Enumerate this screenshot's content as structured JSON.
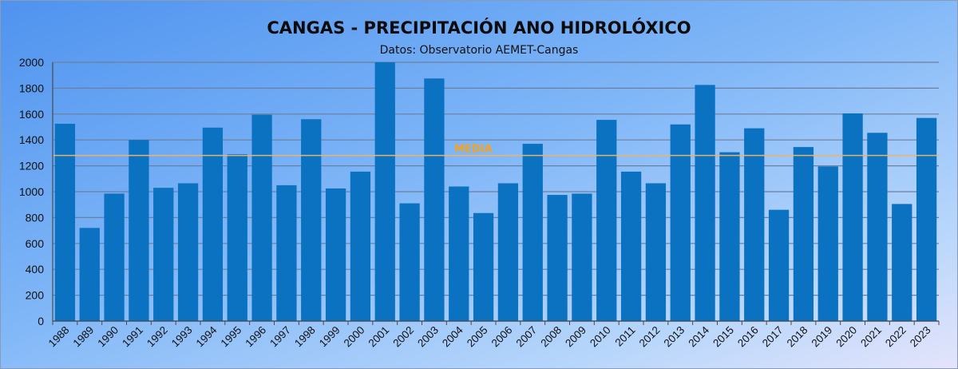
{
  "chart_data": {
    "type": "bar",
    "title": "CANGAS - PRECIPITACIÓN ANO HIDROLÓXICO",
    "subtitle": "Datos: Observatorio AEMET-Cangas",
    "xlabel": "",
    "ylabel": "",
    "ylim": [
      0,
      2000
    ],
    "yticks": [
      0,
      200,
      400,
      600,
      800,
      1000,
      1200,
      1400,
      1600,
      1800,
      2000
    ],
    "grid": true,
    "categories": [
      "1988",
      "1989",
      "1990",
      "1991",
      "1992",
      "1993",
      "1994",
      "1995",
      "1996",
      "1997",
      "1998",
      "1999",
      "2000",
      "2001",
      "2002",
      "2003",
      "2004",
      "2005",
      "2006",
      "2007",
      "2008",
      "2009",
      "2010",
      "2011",
      "2012",
      "2013",
      "2014",
      "2015",
      "2016",
      "2017",
      "2018",
      "2019",
      "2020",
      "2021",
      "2022",
      "2023"
    ],
    "values": [
      1525,
      720,
      985,
      1400,
      1030,
      1065,
      1495,
      1290,
      1595,
      1050,
      1560,
      1025,
      1155,
      2010,
      910,
      1875,
      1040,
      835,
      1065,
      1370,
      975,
      985,
      1555,
      1155,
      1065,
      1520,
      1825,
      1305,
      1490,
      860,
      1345,
      1195,
      1605,
      1455,
      905,
      1570
    ],
    "reference_line": {
      "label": "MEDIA",
      "value": 1280
    },
    "colors": {
      "bar": "#0a72c1",
      "media_line": "#e8b46a",
      "media_text": "#f7a21a",
      "grid": "#6d7f9d"
    }
  }
}
